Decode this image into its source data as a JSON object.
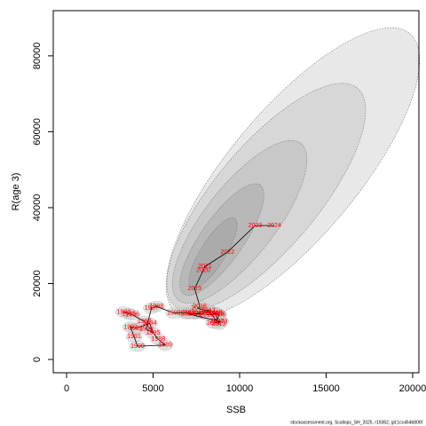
{
  "chart_data": {
    "type": "scatter",
    "xlabel": "SSB",
    "ylabel": "R(age 3)",
    "footer": "stockassessment.org, Scallops_SH_2025, r19362, git:1cc464b806f",
    "labels": [
      "1984",
      "1985",
      "1986",
      "1987",
      "1988",
      "1989",
      "1990",
      "1991",
      "1992",
      "1993",
      "1994",
      "1995",
      "1996",
      "1997",
      "1998",
      "1999",
      "2000",
      "2001",
      "2002",
      "2003",
      "2004",
      "2005",
      "2006",
      "2007",
      "2008",
      "2009",
      "2010",
      "2011",
      "2012",
      "2013",
      "2014",
      "2015",
      "2016",
      "2017",
      "2018",
      "2019",
      "2020",
      "2021",
      "2022",
      "2023",
      "2024"
    ],
    "x": [
      3300,
      3600,
      3800,
      4500,
      5300,
      5700,
      4100,
      3900,
      3700,
      4000,
      4800,
      5000,
      4600,
      4900,
      5200,
      6200,
      6800,
      7100,
      7400,
      7900,
      8200,
      8600,
      8800,
      8700,
      8500,
      8900,
      7000,
      7600,
      8200,
      8800,
      8600,
      8100,
      8700,
      7600,
      7700,
      7400,
      7900,
      8000,
      9300,
      10900,
      12000
    ],
    "values": [
      12500,
      12000,
      11800,
      10000,
      5300,
      3800,
      3500,
      6000,
      8500,
      8200,
      9500,
      7000,
      8000,
      13500,
      14000,
      12200,
      12300,
      12200,
      12000,
      12100,
      12500,
      12300,
      11800,
      10000,
      9600,
      10000,
      12000,
      12200,
      13000,
      9300,
      12100,
      11800,
      12000,
      13500,
      14000,
      18700,
      23500,
      24500,
      28300,
      35300,
      35300
    ],
    "line_color": "#000000",
    "label_color": "#ff0000",
    "xlim": [
      -770,
      20360
    ],
    "ylim": [
      -3500,
      91900
    ],
    "xticks": [
      0,
      5000,
      10000,
      15000,
      20000
    ],
    "yticks": [
      0,
      20000,
      40000,
      60000,
      80000
    ]
  }
}
